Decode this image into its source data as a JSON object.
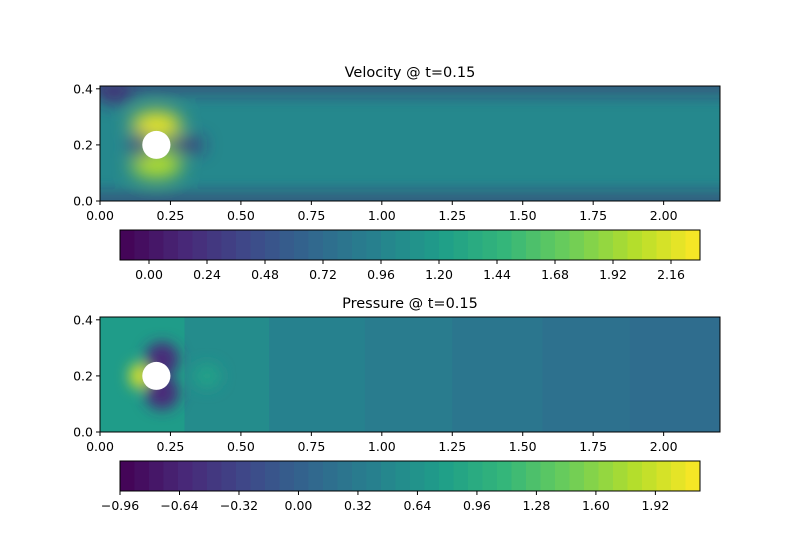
{
  "chart_data": [
    {
      "type": "heatmap",
      "title": "Velocity @ t=0.15",
      "xlabel": "",
      "ylabel": "",
      "xlim": [
        0,
        2.2
      ],
      "ylim": [
        0,
        0.41
      ],
      "xticks": [
        "0.00",
        "0.25",
        "0.50",
        "0.75",
        "1.00",
        "1.25",
        "1.50",
        "1.75",
        "2.00"
      ],
      "yticks": [
        "0.0",
        "0.2",
        "0.4"
      ],
      "obstacle": {
        "shape": "circle",
        "cx": 0.2,
        "cy": 0.2,
        "r": 0.05
      },
      "colormap": "viridis",
      "colorbar": {
        "range": [
          -0.12,
          2.28
        ],
        "ticks": [
          "0.00",
          "0.24",
          "0.48",
          "0.72",
          "0.96",
          "1.20",
          "1.44",
          "1.68",
          "1.92",
          "2.16"
        ],
        "tick_values": [
          0,
          0.24,
          0.48,
          0.72,
          0.96,
          1.2,
          1.44,
          1.68,
          1.92,
          2.16
        ],
        "levels": 40,
        "orientation": "horizontal"
      },
      "field": {
        "background": 1.0,
        "features": [
          {
            "kind": "wall",
            "y": 0.0,
            "value": 0.05
          },
          {
            "kind": "wall",
            "y": 0.41,
            "value": 0.05
          },
          {
            "kind": "inflow-corner",
            "x": 0.05,
            "y": 0.39,
            "value": 0.1
          },
          {
            "kind": "high",
            "x": 0.2,
            "y": 0.27,
            "value": 2.2
          },
          {
            "kind": "high",
            "x": 0.2,
            "y": 0.13,
            "value": 2.0
          },
          {
            "kind": "stagnation",
            "x": 0.14,
            "y": 0.2,
            "value": 0.2
          },
          {
            "kind": "wake",
            "x": 0.3,
            "y": 0.2,
            "value": 0.1
          }
        ]
      }
    },
    {
      "type": "heatmap",
      "title": "Pressure @ t=0.15",
      "xlabel": "",
      "ylabel": "",
      "xlim": [
        0,
        2.2
      ],
      "ylim": [
        0,
        0.41
      ],
      "xticks": [
        "0.00",
        "0.25",
        "0.50",
        "0.75",
        "1.00",
        "1.25",
        "1.50",
        "1.75",
        "2.00"
      ],
      "yticks": [
        "0.0",
        "0.2",
        "0.4"
      ],
      "obstacle": {
        "shape": "circle",
        "cx": 0.2,
        "cy": 0.2,
        "r": 0.05
      },
      "colormap": "viridis",
      "colorbar": {
        "range": [
          -0.96,
          2.16
        ],
        "ticks": [
          "−0.96",
          "−0.64",
          "−0.32",
          "0.00",
          "0.32",
          "0.64",
          "0.96",
          "1.28",
          "1.60",
          "1.92"
        ],
        "tick_values": [
          -0.96,
          -0.64,
          -0.32,
          0,
          0.32,
          0.64,
          0.96,
          1.28,
          1.6,
          1.92
        ],
        "levels": 40,
        "orientation": "horizontal"
      },
      "field": {
        "columns": [
          {
            "x0": 0.0,
            "x1": 0.3,
            "value": 0.75
          },
          {
            "x0": 0.3,
            "x1": 0.6,
            "value": 0.55
          },
          {
            "x0": 0.6,
            "x1": 0.94,
            "value": 0.42
          },
          {
            "x0": 0.94,
            "x1": 1.25,
            "value": 0.34
          },
          {
            "x0": 1.25,
            "x1": 1.57,
            "value": 0.27
          },
          {
            "x0": 1.57,
            "x1": 1.88,
            "value": 0.2
          },
          {
            "x0": 1.88,
            "x1": 2.2,
            "value": 0.14
          }
        ],
        "features": [
          {
            "kind": "stagnation-high",
            "x": 0.14,
            "y": 0.2,
            "value": 2.0
          },
          {
            "kind": "low",
            "x": 0.22,
            "y": 0.26,
            "value": -0.6
          },
          {
            "kind": "low",
            "x": 0.22,
            "y": 0.14,
            "value": -0.6
          },
          {
            "kind": "eddy",
            "x": 0.38,
            "y": 0.2,
            "value": 0.8
          }
        ]
      }
    }
  ]
}
